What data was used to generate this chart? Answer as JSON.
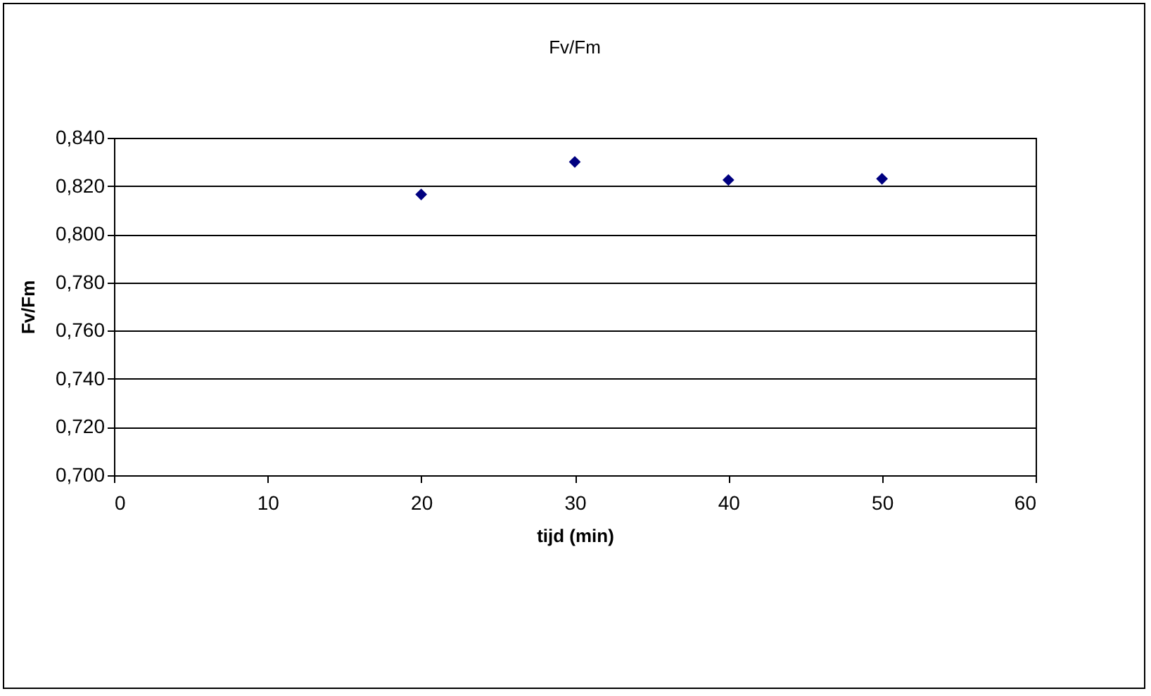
{
  "chart_data": {
    "type": "scatter",
    "title": "Fv/Fm",
    "xlabel": "tijd (min)",
    "ylabel": "Fv/Fm",
    "x": [
      20,
      30,
      40,
      50
    ],
    "series": [
      {
        "color": "#000080",
        "values": [
          0.8165,
          0.83,
          0.8225,
          0.823
        ]
      }
    ],
    "xlim": [
      0,
      60
    ],
    "xticks": [
      0,
      10,
      20,
      30,
      40,
      50,
      60
    ],
    "ylim": [
      0.7,
      0.84
    ],
    "yticks": [
      {
        "value": 0.7,
        "label": "0,700"
      },
      {
        "value": 0.72,
        "label": "0,720"
      },
      {
        "value": 0.74,
        "label": "0,740"
      },
      {
        "value": 0.76,
        "label": "0,760"
      },
      {
        "value": 0.78,
        "label": "0,780"
      },
      {
        "value": 0.8,
        "label": "0,800"
      },
      {
        "value": 0.82,
        "label": "0,820"
      },
      {
        "value": 0.84,
        "label": "0,840"
      }
    ],
    "grid": "y",
    "marker": "diamond"
  }
}
